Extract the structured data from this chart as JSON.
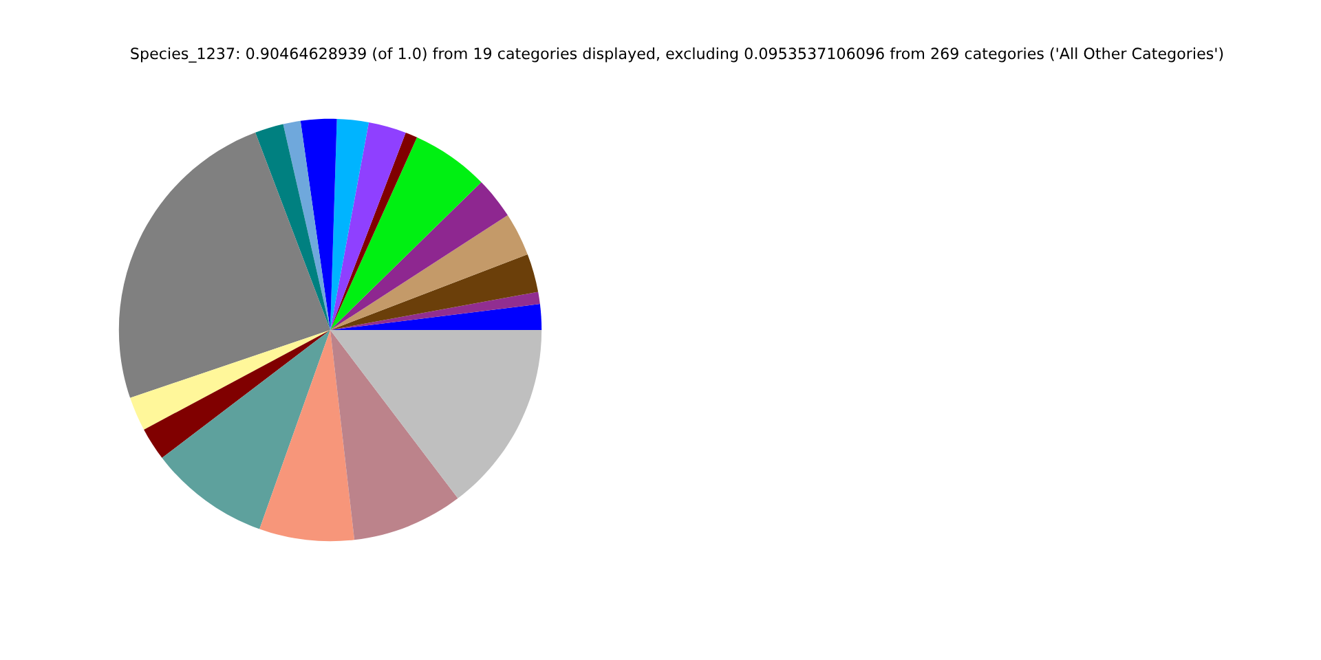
{
  "chart_data": {
    "type": "pie",
    "title": "Species_1237: 0.90464628939 (of 1.0) from 19 categories displayed, excluding 0.0953537106096 from 269 categories ('All Other Categories')",
    "categories": [
      null,
      null,
      null,
      null,
      null,
      null,
      null,
      null,
      null,
      null,
      null,
      null,
      null,
      null,
      null,
      null,
      null,
      null,
      null
    ],
    "values": [
      1.97,
      0.92,
      2.94,
      3.31,
      3.19,
      5.94,
      0.92,
      2.89,
      2.42,
      2.75,
      1.33,
      2.19,
      24.44,
      2.61,
      2.53,
      9.22,
      7.25,
      8.5,
      14.68
    ],
    "colors": [
      "#0000ff",
      "#912e91",
      "#6b3f0a",
      "#c49a69",
      "#8e2790",
      "#00f012",
      "#800000",
      "#8f40ff",
      "#00b4ff",
      "#0000ff",
      "#6fa8dc",
      "#008080",
      "#808080",
      "#fff79a",
      "#800000",
      "#5ea19d",
      "#f7967a",
      "#bc838b",
      "#bfbfbf"
    ]
  }
}
